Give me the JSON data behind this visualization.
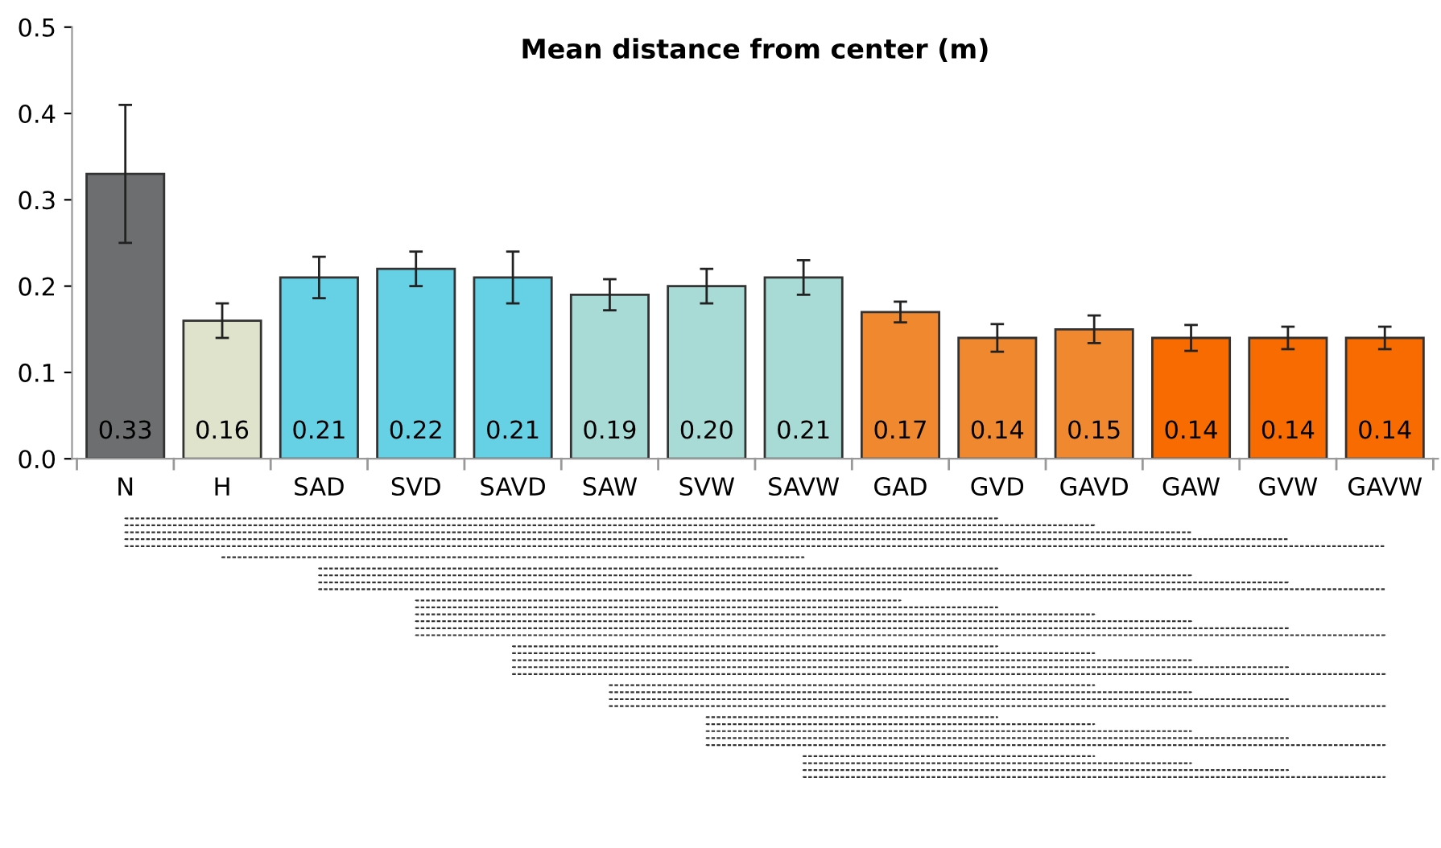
{
  "chart_data": {
    "type": "bar",
    "title": "Mean distance from center (m)",
    "categories": [
      "N",
      "H",
      "SAD",
      "SVD",
      "SAVD",
      "SAW",
      "SVW",
      "SAVW",
      "GAD",
      "GVD",
      "GAVD",
      "GAW",
      "GVW",
      "GAVW"
    ],
    "values": [
      0.33,
      0.16,
      0.21,
      0.22,
      0.21,
      0.19,
      0.2,
      0.21,
      0.17,
      0.14,
      0.15,
      0.14,
      0.14,
      0.14
    ],
    "errors": [
      0.08,
      0.02,
      0.024,
      0.02,
      0.03,
      0.018,
      0.02,
      0.02,
      0.012,
      0.016,
      0.016,
      0.015,
      0.013,
      0.013
    ],
    "value_labels": [
      "0.33",
      "0.16",
      "0.21",
      "0.22",
      "0.21",
      "0.19",
      "0.20",
      "0.21",
      "0.17",
      "0.14",
      "0.15",
      "0.14",
      "0.14",
      "0.14"
    ],
    "colors": [
      "#6d6e70",
      "#e0e3cc",
      "#66d0e4",
      "#66d0e4",
      "#66d0e4",
      "#a8dbd6",
      "#a8dbd6",
      "#a8dbd6",
      "#f08830",
      "#f08830",
      "#f08830",
      "#f76b00",
      "#f76b00",
      "#f76b00"
    ],
    "ylim": [
      0,
      0.5
    ],
    "yticks": [
      {
        "value": 0,
        "label": "0.0"
      },
      0.1,
      0.2,
      0.3,
      0.4,
      0.5
    ],
    "grid": false,
    "legend": false
  }
}
